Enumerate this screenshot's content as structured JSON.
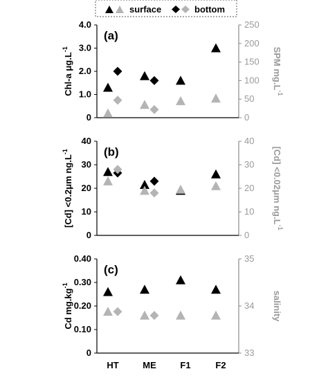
{
  "legend": {
    "surface_label": "surface",
    "bottom_label": "bottom",
    "placement": "top-center"
  },
  "colors": {
    "surface_black": "#000000",
    "surface_grey": "#b4b4b4",
    "bottom_black": "#000000",
    "bottom_grey": "#b4b4b4",
    "right_axis": "#9a9a9a"
  },
  "chart_data": [
    {
      "panel": "(a)",
      "type": "scatter",
      "categories": [
        "HT",
        "ME",
        "F1",
        "F2"
      ],
      "ylabel_left": "Chl-a  μg.L",
      "ylabel_left_sup": "-1",
      "ylabel_right": "SPM  mg.L",
      "ylabel_right_sup": "-1",
      "ylim_left": [
        0,
        4
      ],
      "yticks_left": [
        "0",
        "1.0",
        "2.0",
        "3.0",
        "4.0"
      ],
      "ylim_right": [
        0,
        250
      ],
      "yticks_right": [
        "0",
        "50",
        "100",
        "150",
        "200",
        "250"
      ],
      "series": [
        {
          "marker": "triangle",
          "color": "black",
          "axis": "left",
          "offset": -1,
          "values": [
            1.3,
            1.8,
            1.6,
            3.0
          ]
        },
        {
          "marker": "diamond",
          "color": "black",
          "axis": "left",
          "offset": 1,
          "values": [
            2.0,
            1.6,
            null,
            null
          ]
        },
        {
          "marker": "triangle",
          "color": "grey",
          "axis": "right",
          "offset": -1,
          "values": [
            12,
            35,
            45,
            52
          ]
        },
        {
          "marker": "diamond",
          "color": "grey",
          "axis": "right",
          "offset": 1,
          "values": [
            47,
            22,
            null,
            null
          ]
        }
      ]
    },
    {
      "panel": "(b)",
      "type": "scatter",
      "categories": [
        "HT",
        "ME",
        "F1",
        "F2"
      ],
      "ylabel_left": "[Cd] <0.2μm  ng.L",
      "ylabel_left_sup": "-1",
      "ylabel_right": "[Cd] <0.02μm  ng.L",
      "ylabel_right_sup": "-1",
      "ylim_left": [
        0,
        40
      ],
      "yticks_left": [
        "0",
        "10",
        "20",
        "30",
        "40"
      ],
      "ylim_right": [
        0,
        40
      ],
      "yticks_right": [
        "0",
        "10",
        "20",
        "30",
        "40"
      ],
      "series": [
        {
          "marker": "triangle",
          "color": "black",
          "axis": "left",
          "offset": -1,
          "values": [
            27,
            21.5,
            19,
            26
          ]
        },
        {
          "marker": "diamond",
          "color": "black",
          "axis": "left",
          "offset": 1,
          "values": [
            26.5,
            23,
            null,
            null
          ]
        },
        {
          "marker": "triangle",
          "color": "grey",
          "axis": "right",
          "offset": -1,
          "values": [
            23,
            19,
            19.5,
            21
          ]
        },
        {
          "marker": "diamond",
          "color": "grey",
          "axis": "right",
          "offset": 1,
          "values": [
            28,
            18,
            null,
            null
          ]
        }
      ]
    },
    {
      "panel": "(c)",
      "type": "scatter",
      "categories": [
        "HT",
        "ME",
        "F1",
        "F2"
      ],
      "ylabel_left": "Cd mg.kg",
      "ylabel_left_sup": "-1",
      "ylabel_right": "salinity",
      "ylabel_right_sup": "",
      "ylim_left": [
        0,
        0.4
      ],
      "yticks_left": [
        "0",
        "0.10",
        "0.20",
        "0.30",
        "0.40"
      ],
      "ylim_right": [
        33,
        35
      ],
      "yticks_right": [
        "33",
        "34",
        "35"
      ],
      "series": [
        {
          "marker": "triangle",
          "color": "black",
          "axis": "left",
          "offset": -1,
          "values": [
            0.26,
            0.27,
            0.31,
            0.27
          ]
        },
        {
          "marker": "triangle",
          "color": "grey",
          "axis": "right",
          "offset": -1,
          "values": [
            33.88,
            33.8,
            33.8,
            33.8
          ]
        },
        {
          "marker": "diamond",
          "color": "grey",
          "axis": "right",
          "offset": 1,
          "values": [
            33.88,
            33.8,
            null,
            null
          ]
        }
      ]
    }
  ]
}
